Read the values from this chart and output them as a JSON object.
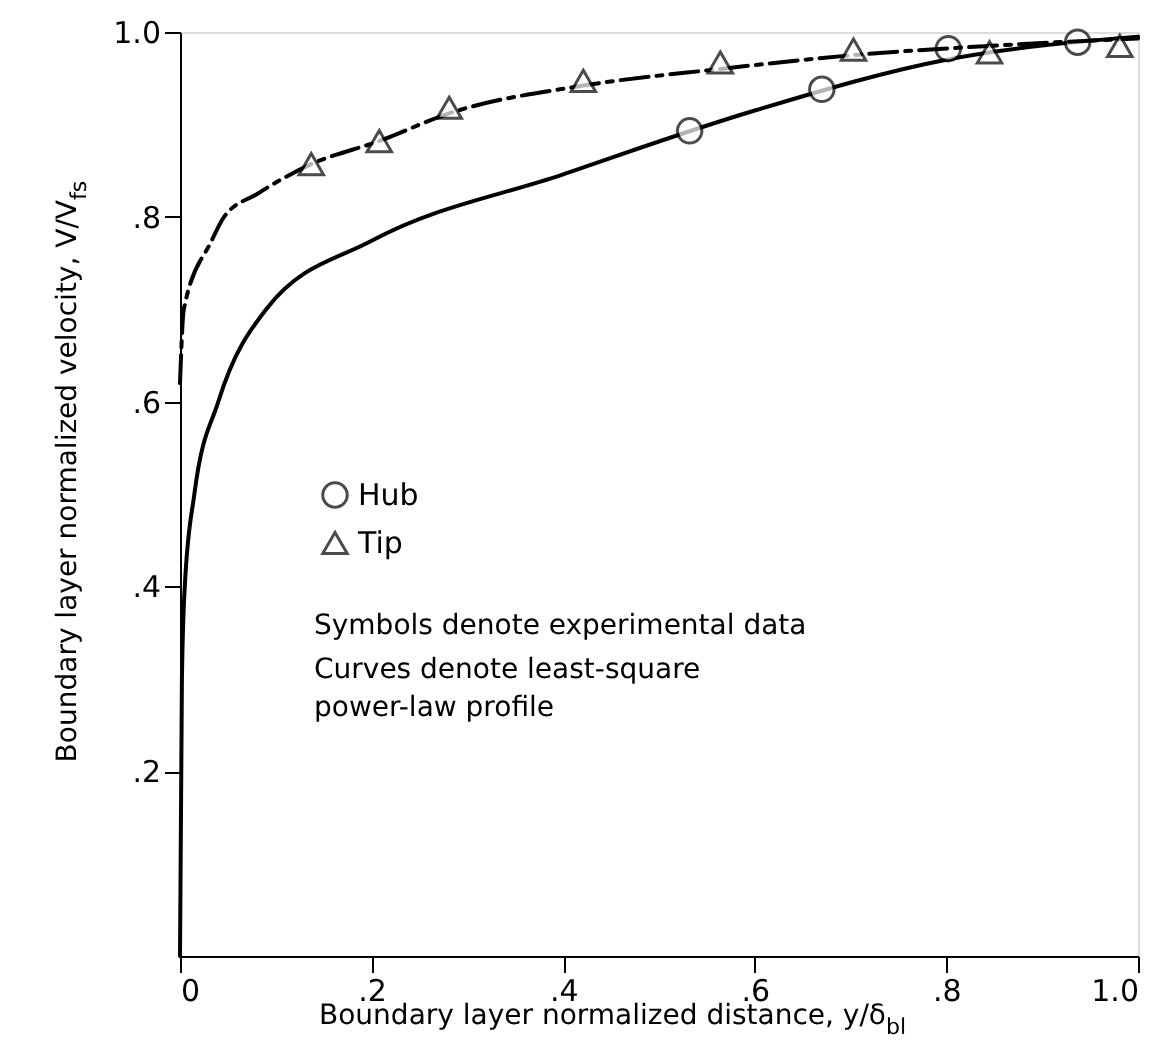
{
  "chart_data": {
    "type": "line",
    "xlabel": "Boundary layer normalized distance, y/δ$_{bl}$",
    "ylabel": "Boundary layer normalized velocity, V/V$_{fs}$",
    "xlim": [
      0,
      1.0
    ],
    "ylim": [
      0,
      1.0
    ],
    "xticks": [
      0,
      {
        "value": 0.2,
        "label": ".2"
      },
      {
        "value": 0.4,
        "label": ".4"
      },
      {
        "value": 0.6,
        "label": ".6"
      },
      {
        "value": 0.8,
        "label": ".8"
      },
      {
        "value": 1.0,
        "label": "1.0"
      }
    ],
    "yticks": [
      {
        "value": 0.2,
        "label": ".2"
      },
      {
        "value": 0.4,
        "label": ".4"
      },
      {
        "value": 0.6,
        "label": ".6"
      },
      {
        "value": 0.8,
        "label": ".8"
      },
      {
        "value": 1.0,
        "label": "1.0"
      }
    ],
    "grid": false,
    "legend": "left",
    "annotations": [
      "Symbols denote experimental data",
      "Curves denote least-square\n  power-law profile"
    ],
    "series": [
      {
        "type": "line",
        "color": "#000000",
        "line_style": "solid",
        "marker": "none",
        "x": [
          0,
          0.002,
          0.005,
          0.015,
          0.04,
          0.09,
          0.2,
          0.4,
          0.6,
          0.8,
          1.0
        ],
        "values": [
          0,
          0.3,
          0.4,
          0.5,
          0.6,
          0.7,
          0.774,
          0.846,
          0.915,
          0.97,
          0.995
        ]
      },
      {
        "type": "scatter",
        "name": "Hub",
        "color": "#000000",
        "marker": "circle",
        "x": [
          0.532,
          0.67,
          0.802,
          0.937
        ],
        "values": [
          0.893,
          0.938,
          0.982,
          0.989
        ]
      },
      {
        "type": "line",
        "color": "#000000",
        "line_style": "dashed",
        "marker": "none",
        "x": [
          0,
          0.004,
          0.033,
          0.046,
          0.081,
          0.137,
          0.208,
          0.281,
          0.421,
          0.564,
          0.703,
          0.845,
          1.0
        ],
        "values": [
          0.62,
          0.7,
          0.774,
          0.8,
          0.825,
          0.857,
          0.882,
          0.912,
          0.942,
          0.96,
          0.975,
          0.985,
          0.993
        ]
      },
      {
        "type": "scatter",
        "name": "Tip",
        "color": "#000000",
        "marker": "triangle",
        "x": [
          0.137,
          0.208,
          0.281,
          0.421,
          0.564,
          0.703,
          0.845,
          0.981
        ],
        "values": [
          0.857,
          0.882,
          0.918,
          0.947,
          0.967,
          0.981,
          0.978,
          0.985
        ]
      }
    ]
  }
}
